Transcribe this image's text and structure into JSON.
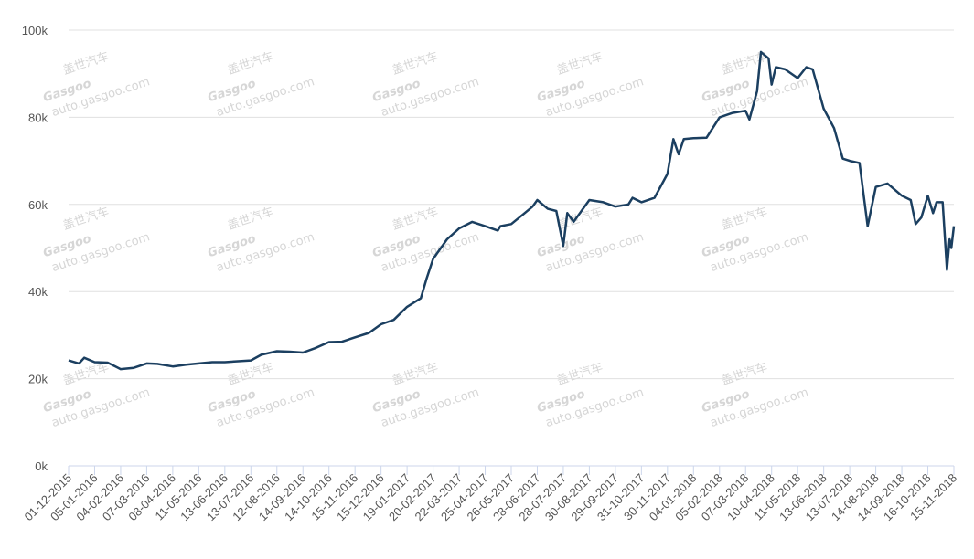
{
  "chart_data": {
    "type": "line",
    "x": [
      "01-12-2015",
      "15-12-2015",
      "22-12-2015",
      "05-01-2016",
      "20-01-2016",
      "04-02-2016",
      "20-02-2016",
      "07-03-2016",
      "20-03-2016",
      "08-04-2016",
      "25-04-2016",
      "11-05-2016",
      "28-05-2016",
      "13-06-2016",
      "28-06-2016",
      "13-07-2016",
      "25-07-2016",
      "12-08-2016",
      "28-08-2016",
      "14-09-2016",
      "28-09-2016",
      "14-10-2016",
      "30-10-2016",
      "15-11-2016",
      "01-12-2016",
      "15-12-2016",
      "01-01-2017",
      "19-01-2017",
      "05-02-2017",
      "12-02-2017",
      "20-02-2017",
      "08-03-2017",
      "22-03-2017",
      "08-04-2017",
      "25-04-2017",
      "10-05-2017",
      "13-05-2017",
      "26-05-2017",
      "12-06-2017",
      "22-06-2017",
      "28-06-2017",
      "10-07-2017",
      "20-07-2017",
      "28-07-2017",
      "02-08-2017",
      "10-08-2017",
      "18-08-2017",
      "30-08-2017",
      "15-09-2017",
      "29-09-2017",
      "15-10-2017",
      "20-10-2017",
      "31-10-2017",
      "15-11-2017",
      "30-11-2017",
      "08-12-2017",
      "15-12-2017",
      "22-12-2017",
      "04-01-2018",
      "20-01-2018",
      "05-02-2018",
      "20-02-2018",
      "07-03-2018",
      "12-03-2018",
      "22-03-2018",
      "27-03-2018",
      "06-04-2018",
      "10-04-2018",
      "15-04-2018",
      "26-04-2018",
      "11-05-2018",
      "22-05-2018",
      "30-05-2018",
      "13-06-2018",
      "25-06-2018",
      "05-07-2018",
      "13-07-2018",
      "25-07-2018",
      "04-08-2018",
      "14-08-2018",
      "28-08-2018",
      "14-09-2018",
      "25-09-2018",
      "01-10-2018",
      "08-10-2018",
      "16-10-2018",
      "22-10-2018",
      "26-10-2018",
      "02-11-2018",
      "07-11-2018",
      "10-11-2018",
      "12-11-2018",
      "15-11-2018"
    ],
    "series": [
      {
        "color": "#1b3f60",
        "values": [
          24200,
          23500,
          24800,
          23800,
          23700,
          22200,
          22500,
          23500,
          23400,
          22800,
          23200,
          23500,
          23800,
          23800,
          24000,
          24200,
          25500,
          26300,
          26200,
          26000,
          27000,
          28400,
          28500,
          29500,
          30500,
          32500,
          33500,
          36500,
          38500,
          43000,
          47500,
          52000,
          54500,
          56000,
          55000,
          54000,
          55000,
          55500,
          58000,
          59500,
          61000,
          59000,
          58500,
          50500,
          58000,
          56000,
          58000,
          61000,
          60500,
          59500,
          60000,
          61500,
          60500,
          61500,
          67000,
          75000,
          71500,
          75000,
          75200,
          75300,
          80000,
          81000,
          81500,
          79500,
          86000,
          95000,
          93500,
          87500,
          91500,
          91000,
          89000,
          91500,
          91000,
          82000,
          77500,
          70500,
          70000,
          69500,
          55000,
          64000,
          64800,
          62000,
          61000,
          55500,
          57000,
          62000,
          58000,
          60500,
          60500,
          45000,
          52000,
          50000,
          55000
        ]
      }
    ],
    "xticks": [
      "01-12-2015",
      "05-01-2016",
      "04-02-2016",
      "07-03-2016",
      "08-04-2016",
      "11-05-2016",
      "13-06-2016",
      "13-07-2016",
      "12-08-2016",
      "14-09-2016",
      "14-10-2016",
      "15-11-2016",
      "15-12-2016",
      "19-01-2017",
      "20-02-2017",
      "22-03-2017",
      "25-04-2017",
      "26-05-2017",
      "28-06-2017",
      "28-07-2017",
      "30-08-2017",
      "29-09-2017",
      "31-10-2017",
      "30-11-2017",
      "04-01-2018",
      "05-02-2018",
      "07-03-2018",
      "10-04-2018",
      "11-05-2018",
      "13-06-2018",
      "13-07-2018",
      "14-08-2018",
      "14-09-2018",
      "16-10-2018",
      "15-11-2018"
    ],
    "ylim": [
      0,
      100000
    ],
    "yticks": [
      {
        "value": 0,
        "label": "0k"
      },
      {
        "value": 20000,
        "label": "20k"
      },
      {
        "value": 40000,
        "label": "40k"
      },
      {
        "value": 60000,
        "label": "60k"
      },
      {
        "value": 80000,
        "label": "80k"
      },
      {
        "value": 100000,
        "label": "100k"
      }
    ],
    "grid": true
  },
  "watermark": {
    "cn": "盖世汽车",
    "brand": "Gasgoo",
    "url": "auto.gasgoo.com"
  }
}
